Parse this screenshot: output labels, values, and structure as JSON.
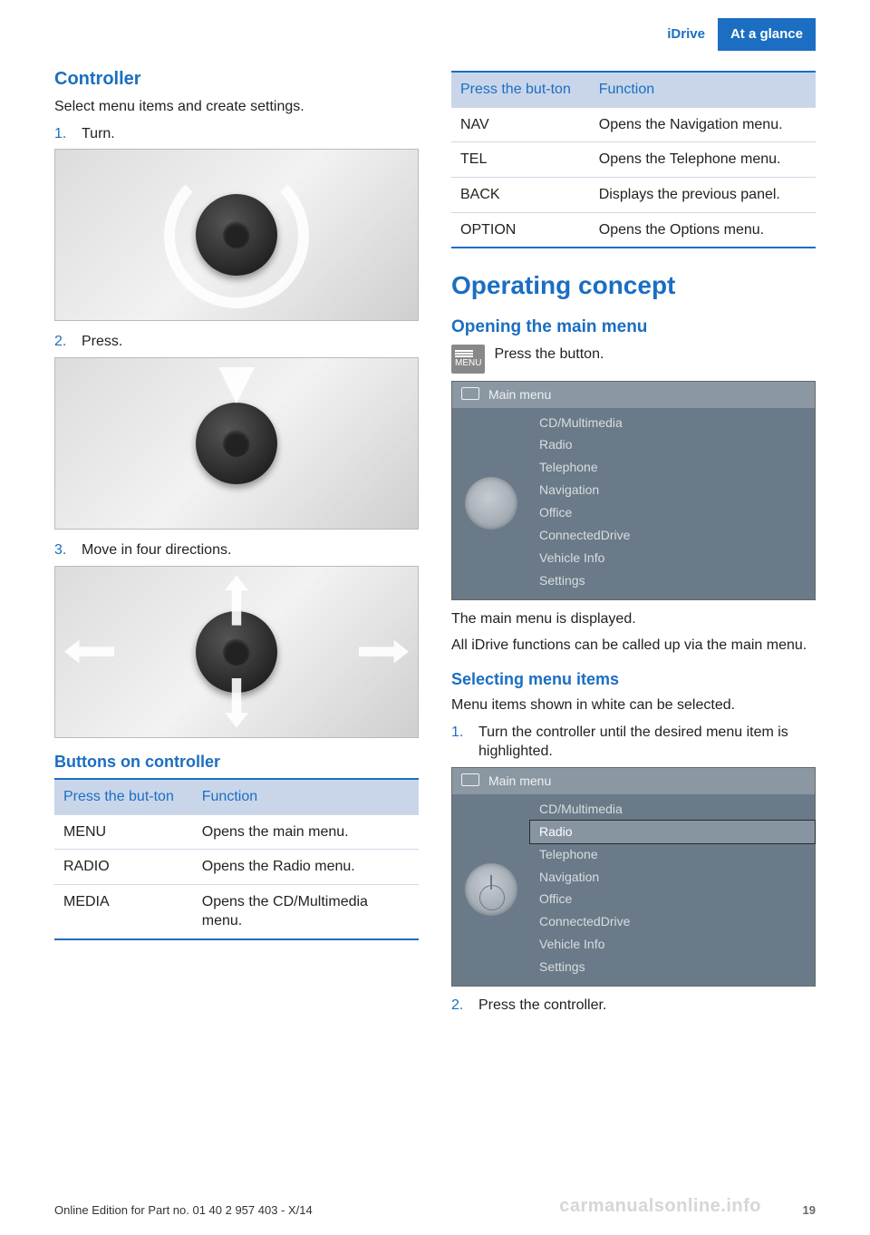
{
  "colors": {
    "primary": "#1b6ec2",
    "header_bg": "#1b6ec2",
    "table_header_bg": "#c9d6ea",
    "table_border": "#1b6ec2",
    "screen_bg": "#6a7a88",
    "screen_titlebar": "#8b98a4",
    "screen_text": "#d9dde1",
    "screen_highlight": "#8795a3"
  },
  "header": {
    "left": "iDrive",
    "right": "At a glance"
  },
  "left_col": {
    "h_controller": "Controller",
    "controller_desc": "Select menu items and create settings.",
    "steps": [
      {
        "n": "1.",
        "text": "Turn."
      },
      {
        "n": "2.",
        "text": "Press."
      },
      {
        "n": "3.",
        "text": "Move in four directions."
      }
    ],
    "h_buttons": "Buttons on controller",
    "table": {
      "col1": "Press the but‐ton",
      "col2": "Function",
      "rows": [
        {
          "btn": "MENU",
          "fn": "Opens the main menu."
        },
        {
          "btn": "RADIO",
          "fn": "Opens the Radio menu."
        },
        {
          "btn": "MEDIA",
          "fn": "Opens the CD/Multimedia menu."
        }
      ]
    }
  },
  "right_col": {
    "table": {
      "col1": "Press the but‐ton",
      "col2": "Function",
      "rows": [
        {
          "btn": "NAV",
          "fn": "Opens the Navigation menu."
        },
        {
          "btn": "TEL",
          "fn": "Opens the Telephone menu."
        },
        {
          "btn": "BACK",
          "fn": "Displays the previous panel."
        },
        {
          "btn": "OPTION",
          "fn": "Opens the Options menu."
        }
      ]
    },
    "h_operating": "Operating concept",
    "h_open_main": "Opening the main menu",
    "menu_icon_label": "MENU",
    "press_button": "Press the button.",
    "screen1": {
      "title": "Main menu",
      "items": [
        "CD/Multimedia",
        "Radio",
        "Telephone",
        "Navigation",
        "Office",
        "ConnectedDrive",
        "Vehicle Info",
        "Settings"
      ],
      "highlight_index": -1
    },
    "after_screen1_a": "The main menu is displayed.",
    "after_screen1_b": "All iDrive functions can be called up via the main menu.",
    "h_selecting": "Selecting menu items",
    "selecting_desc": "Menu items shown in white can be selected.",
    "selecting_steps": [
      {
        "n": "1.",
        "text": "Turn the controller until the desired menu item is highlighted."
      }
    ],
    "screen2": {
      "title": "Main menu",
      "items": [
        "CD/Multimedia",
        "Radio",
        "Telephone",
        "Navigation",
        "Office",
        "ConnectedDrive",
        "Vehicle Info",
        "Settings"
      ],
      "highlight_index": 1
    },
    "selecting_step2": {
      "n": "2.",
      "text": "Press the controller."
    }
  },
  "footer": {
    "left": "Online Edition for Part no. 01 40 2 957 403 - X/14",
    "page": "19",
    "watermark": "carmanualsonline.info"
  }
}
